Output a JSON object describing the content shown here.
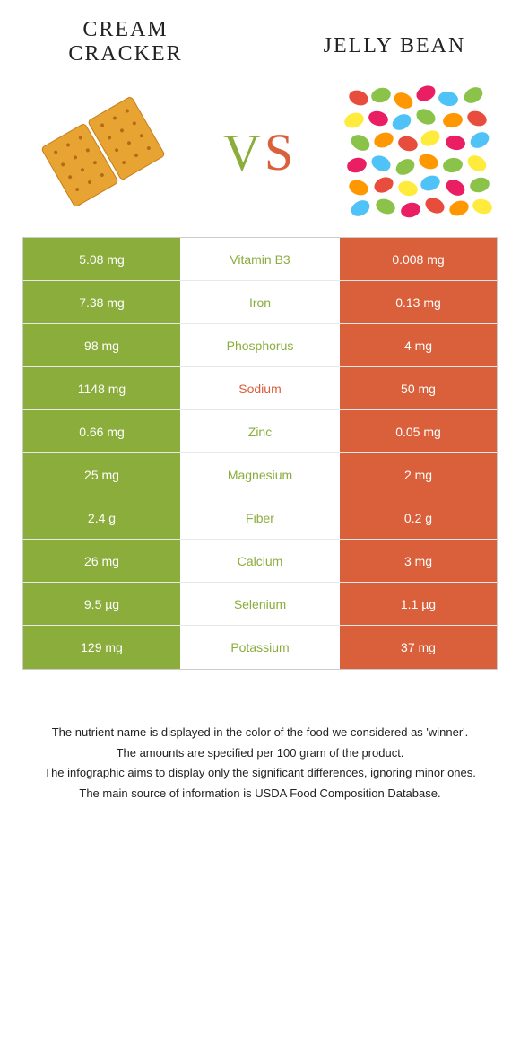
{
  "header": {
    "left_title": "CREAM CRACKER",
    "right_title": "JELLY BEAN",
    "vs_v": "V",
    "vs_s": "S"
  },
  "colors": {
    "green": "#8aad3c",
    "orange": "#d9603a"
  },
  "rows": [
    {
      "left": "5.08 mg",
      "nutrient": "Vitamin B3",
      "right": "0.008 mg",
      "winner": "left"
    },
    {
      "left": "7.38 mg",
      "nutrient": "Iron",
      "right": "0.13 mg",
      "winner": "left"
    },
    {
      "left": "98 mg",
      "nutrient": "Phosphorus",
      "right": "4 mg",
      "winner": "left"
    },
    {
      "left": "1148 mg",
      "nutrient": "Sodium",
      "right": "50 mg",
      "winner": "right"
    },
    {
      "left": "0.66 mg",
      "nutrient": "Zinc",
      "right": "0.05 mg",
      "winner": "left"
    },
    {
      "left": "25 mg",
      "nutrient": "Magnesium",
      "right": "2 mg",
      "winner": "left"
    },
    {
      "left": "2.4 g",
      "nutrient": "Fiber",
      "right": "0.2 g",
      "winner": "left"
    },
    {
      "left": "26 mg",
      "nutrient": "Calcium",
      "right": "3 mg",
      "winner": "left"
    },
    {
      "left": "9.5 µg",
      "nutrient": "Selenium",
      "right": "1.1 µg",
      "winner": "left"
    },
    {
      "left": "129 mg",
      "nutrient": "Potassium",
      "right": "37 mg",
      "winner": "left"
    }
  ],
  "footnotes": {
    "l1": "The nutrient name is displayed in the color of the food we considered as 'winner'.",
    "l2": "The amounts are specified per 100 gram of the product.",
    "l3": "The infographic aims to display only the significant differences, ignoring minor ones.",
    "l4": "The main source of information is USDA Food Composition Database."
  }
}
